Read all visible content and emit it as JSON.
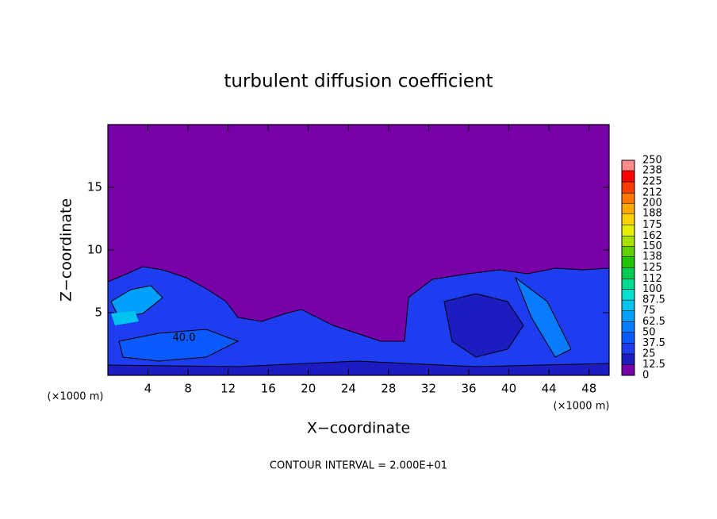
{
  "chart_data": {
    "type": "contour",
    "title": "turbulent diffusion coefficient",
    "x_label": "X−coordinate",
    "y_label": "Z−coordinate",
    "xunit_labels": [
      "(×1000 m)",
      "(×1000 m)"
    ],
    "xlim": [
      0,
      50
    ],
    "ylim": [
      0,
      20
    ],
    "xticks": [
      4,
      8,
      12,
      16,
      20,
      24,
      28,
      32,
      36,
      40,
      44,
      48
    ],
    "yticks": [
      5,
      10,
      15
    ],
    "clim": [
      0,
      250
    ],
    "cticks": [
      0,
      12.5,
      25,
      37.5,
      50,
      62.5,
      75,
      87.5,
      100,
      112,
      125,
      138,
      150,
      162,
      175,
      188,
      200,
      212,
      225,
      238,
      250
    ],
    "colors": [
      "#7800a8",
      "#1c1cc0",
      "#1e3cf0",
      "#0a5aff",
      "#0a7cff",
      "#00a0ff",
      "#00c4f0",
      "#00e0d0",
      "#00dc90",
      "#00cc50",
      "#20c400",
      "#60d000",
      "#a8e000",
      "#e8f000",
      "#ffd200",
      "#ffa800",
      "#ff7800",
      "#ff3c00",
      "#ff0000",
      "#ff8a8a"
    ],
    "contour_labels": [
      "40.0"
    ],
    "footnote": "CONTOUR INTERVAL = 2.000E+01"
  }
}
